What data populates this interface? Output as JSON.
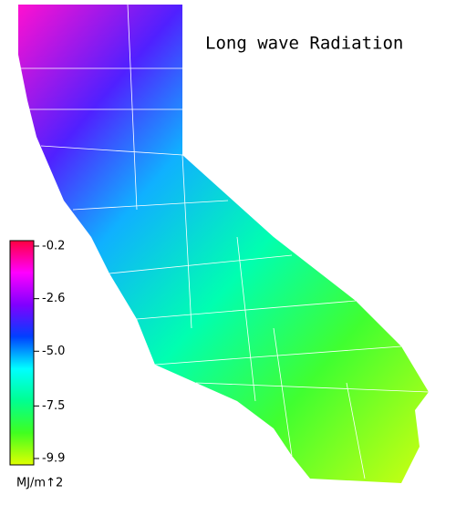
{
  "title": "Long wave Radiation",
  "colorbar": {
    "lim": [
      -9.9,
      -0.2
    ],
    "ticks": [
      -0.2,
      -2.6,
      {
        "value": -5,
        "label": "-5.0"
      },
      -7.5,
      -9.9
    ],
    "unit": "MJ/m↑2",
    "colors": [
      "#e0ff00",
      "#40ff20",
      "#00ff90",
      "#00ffff",
      "#0040ff",
      "#8000ff",
      "#ff00ff",
      "#ff0040"
    ]
  }
}
